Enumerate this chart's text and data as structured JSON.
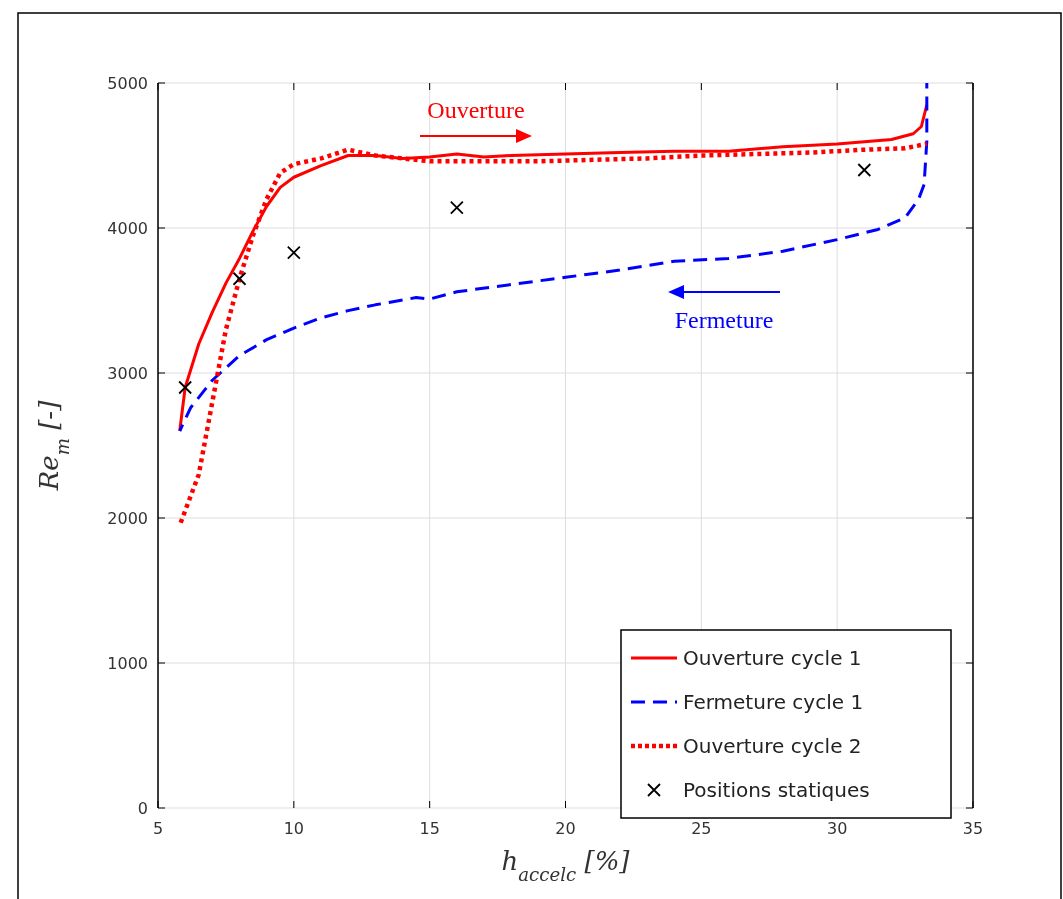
{
  "chart_data": {
    "type": "line",
    "xlabel": "h$_{accelc}$ [%]",
    "ylabel": "Re$_{m}$ [-]",
    "xlim": [
      5,
      35
    ],
    "ylim": [
      0,
      5000
    ],
    "xticks": [
      5,
      10,
      15,
      20,
      25,
      30,
      35
    ],
    "yticks": [
      0,
      1000,
      2000,
      3000,
      4000,
      5000
    ],
    "grid": true,
    "legend": "bottom right",
    "annotations": [
      "Ouverture",
      "Fermeture"
    ],
    "series": [
      {
        "name": "Ouverture cycle 1",
        "color": "#ff0000",
        "line_style": "solid",
        "x": [
          5.8,
          6,
          6.5,
          7,
          7.5,
          8,
          8.5,
          9,
          9.5,
          10,
          11,
          12,
          13,
          14,
          15,
          16,
          17,
          18,
          20,
          22,
          24,
          26,
          28,
          30,
          32,
          32.8,
          33.1,
          33.3
        ],
        "values": [
          2600,
          2900,
          3200,
          3420,
          3620,
          3790,
          3980,
          4150,
          4280,
          4350,
          4430,
          4500,
          4500,
          4480,
          4490,
          4510,
          4490,
          4500,
          4510,
          4520,
          4530,
          4530,
          4560,
          4580,
          4610,
          4650,
          4700,
          4850
        ]
      },
      {
        "name": "Fermeture cycle 1",
        "color": "#0000ff",
        "line_style": "dashed",
        "x": [
          33.3,
          33.3,
          33.2,
          33,
          32.5,
          31.5,
          30,
          28,
          26,
          24,
          22,
          20,
          18,
          16,
          15,
          14.5,
          13,
          12,
          11,
          10,
          9,
          8,
          7,
          6.2,
          5.8
        ],
        "values": [
          5000,
          4600,
          4300,
          4200,
          4070,
          3990,
          3920,
          3840,
          3790,
          3770,
          3710,
          3660,
          3610,
          3560,
          3510,
          3520,
          3470,
          3430,
          3380,
          3310,
          3230,
          3120,
          2950,
          2760,
          2600
        ]
      },
      {
        "name": "Ouverture cycle 2",
        "color": "#ff0000",
        "line_style": "dotted",
        "x": [
          5.8,
          6,
          6.5,
          7,
          7.5,
          8,
          8.5,
          9,
          9.5,
          10,
          11,
          12,
          13,
          15,
          17,
          19,
          21,
          23,
          25,
          27,
          29,
          31,
          32.5,
          33.3
        ],
        "values": [
          1950,
          2050,
          2300,
          2800,
          3300,
          3650,
          3950,
          4200,
          4380,
          4440,
          4480,
          4540,
          4500,
          4460,
          4460,
          4460,
          4470,
          4480,
          4500,
          4510,
          4520,
          4540,
          4550,
          4580
        ]
      },
      {
        "name": "Positions statiques",
        "type": "scatter",
        "color": "#000000",
        "marker": "cross",
        "x": [
          6,
          8,
          10,
          16,
          31
        ],
        "values": [
          2900,
          3650,
          3830,
          4140,
          4400
        ]
      }
    ]
  }
}
